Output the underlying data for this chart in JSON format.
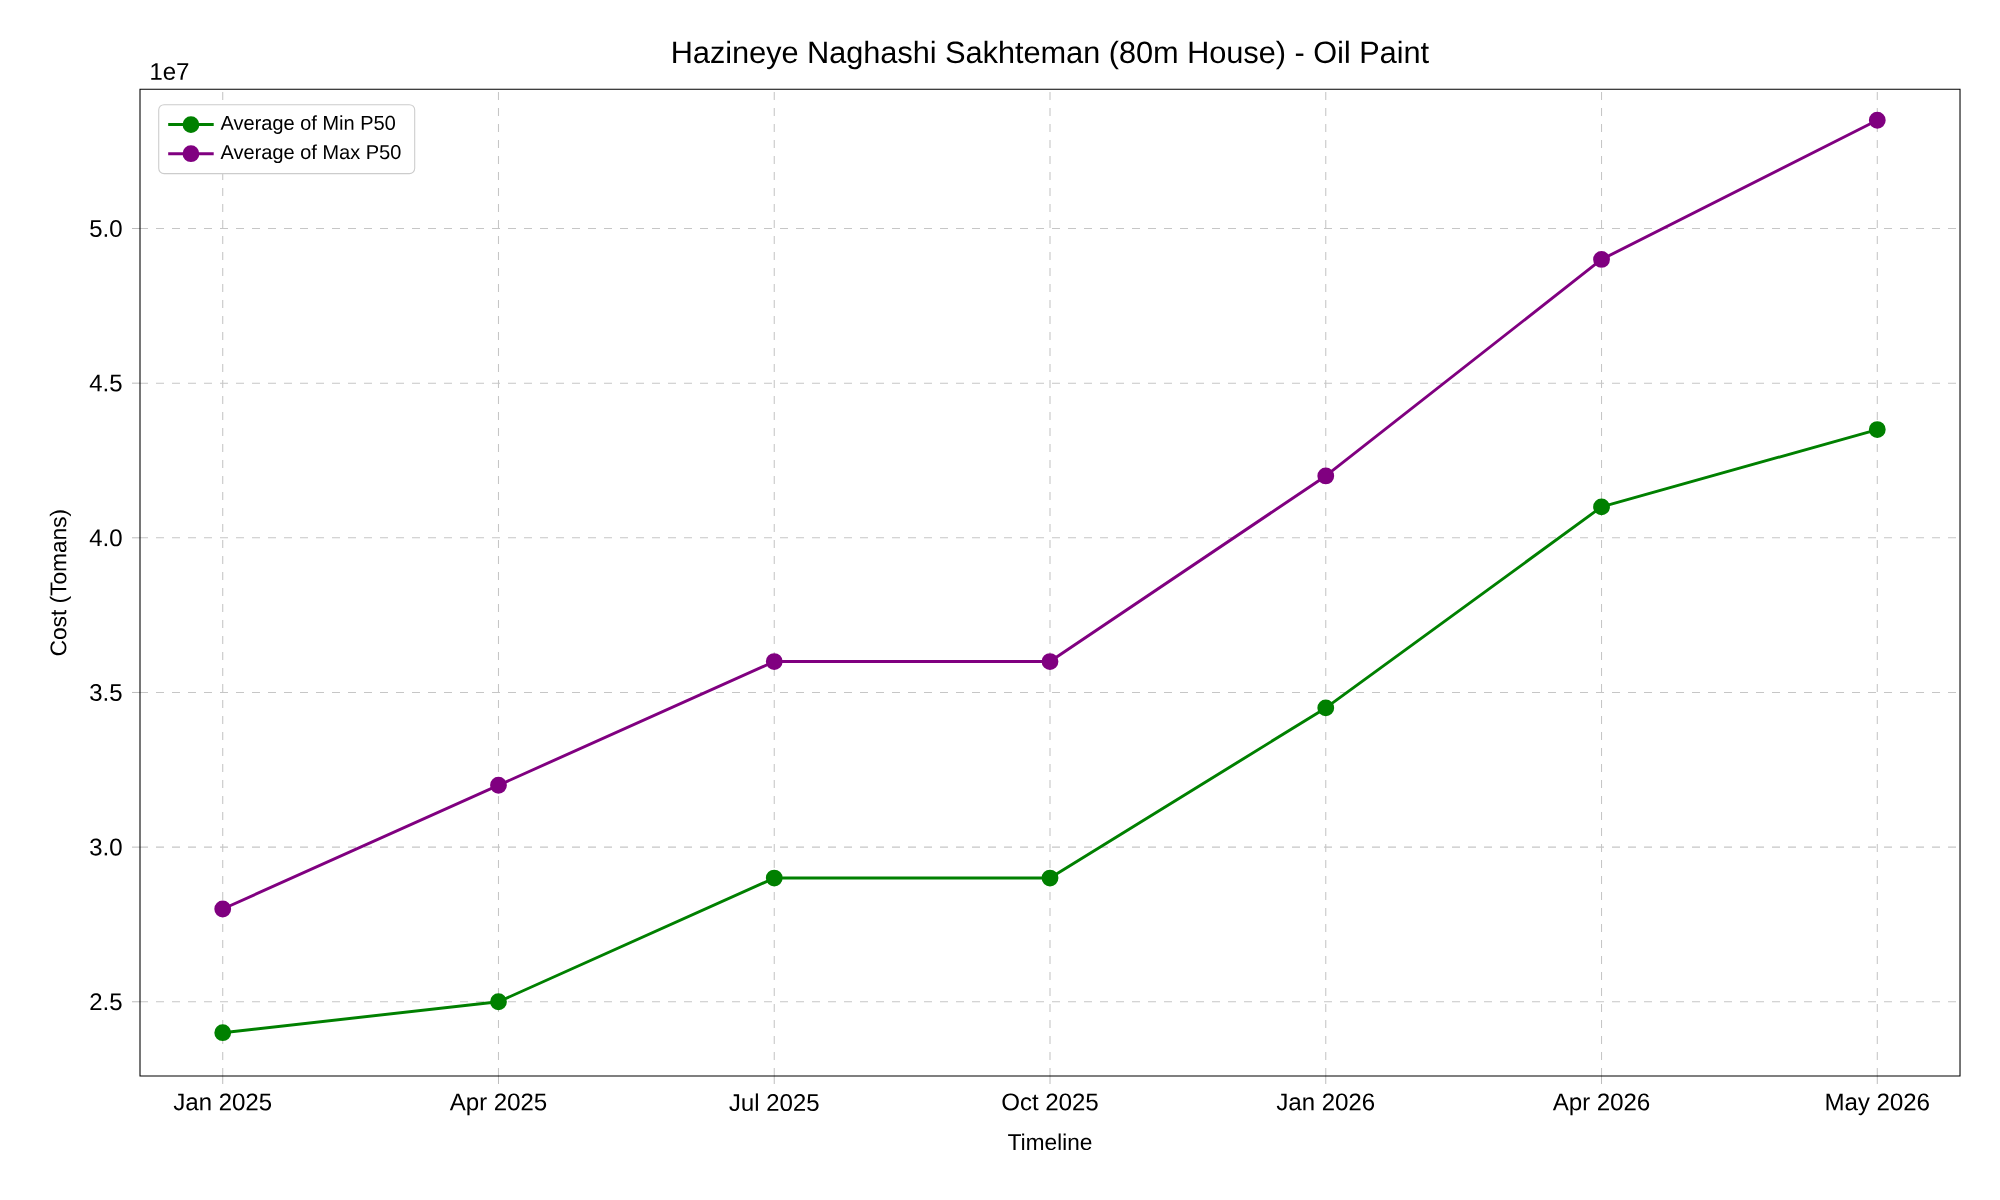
{
  "chart_data": {
    "type": "line",
    "title": "Hazineye Naghashi Sakhteman (80m House) - Oil Paint",
    "xlabel": "Timeline",
    "ylabel": "Cost (Tomans)",
    "categories": [
      "Jan 2025",
      "Apr 2025",
      "Jul 2025",
      "Oct 2025",
      "Jan 2026",
      "Apr 2026",
      "May 2026"
    ],
    "series": [
      {
        "name": "Average of Min P50",
        "color": "#008000",
        "values": [
          2.4,
          2.5,
          2.9,
          2.9,
          3.45,
          4.1,
          4.35
        ]
      },
      {
        "name": "Average of Max P50",
        "color": "#800080",
        "values": [
          2.8,
          3.2,
          3.6,
          3.6,
          4.2,
          4.9,
          5.35
        ]
      }
    ],
    "ylim": [
      2.26,
      5.45
    ],
    "yticks": [
      2.5,
      {
        "value": 3,
        "label": "3.0"
      },
      3.5,
      {
        "value": 4,
        "label": "4.0"
      },
      4.5,
      {
        "value": 5,
        "label": "5.0"
      }
    ],
    "annotations": [
      "1e7"
    ],
    "grid": true,
    "legend": "top left",
    "marker": "circle",
    "line_style": "solid"
  }
}
